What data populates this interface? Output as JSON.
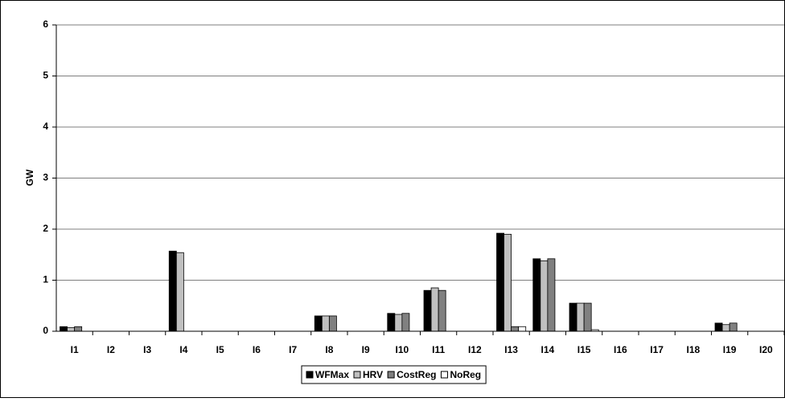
{
  "chart_data": {
    "type": "bar",
    "y_label": "GW",
    "categories": [
      "I1",
      "I2",
      "I3",
      "I4",
      "I5",
      "I6",
      "I7",
      "I8",
      "I9",
      "I10",
      "I11",
      "I12",
      "I13",
      "I14",
      "I15",
      "I16",
      "I17",
      "I18",
      "I19",
      "I20"
    ],
    "series": [
      {
        "name": "WFMax",
        "color": "#000000",
        "values": [
          0.09,
          0,
          0,
          1.57,
          0,
          0,
          0,
          0.3,
          0,
          0.35,
          0.8,
          0,
          1.92,
          1.42,
          0.55,
          0,
          0,
          0,
          0.16,
          0
        ]
      },
      {
        "name": "HRV",
        "color": "#c0c0c0",
        "values": [
          0.07,
          0,
          0,
          1.54,
          0,
          0,
          0,
          0.3,
          0,
          0.33,
          0.85,
          0,
          1.9,
          1.38,
          0.55,
          0,
          0,
          0,
          0.13,
          0
        ]
      },
      {
        "name": "CostReg",
        "color": "#808080",
        "values": [
          0.09,
          0,
          0,
          0,
          0,
          0,
          0,
          0.3,
          0,
          0.35,
          0.8,
          0,
          0.09,
          1.42,
          0.55,
          0,
          0,
          0,
          0.16,
          0
        ]
      },
      {
        "name": "NoReg",
        "color": "#ffffff",
        "values": [
          0,
          0,
          0,
          0,
          0,
          0,
          0,
          0,
          0,
          0,
          0,
          0,
          0.09,
          0,
          0.03,
          0,
          0,
          0,
          0,
          0
        ]
      }
    ],
    "ylim": [
      0,
      6
    ],
    "yticks": [
      0,
      1,
      2,
      3,
      4,
      5,
      6
    ],
    "grid": true,
    "legend": "bottom"
  }
}
